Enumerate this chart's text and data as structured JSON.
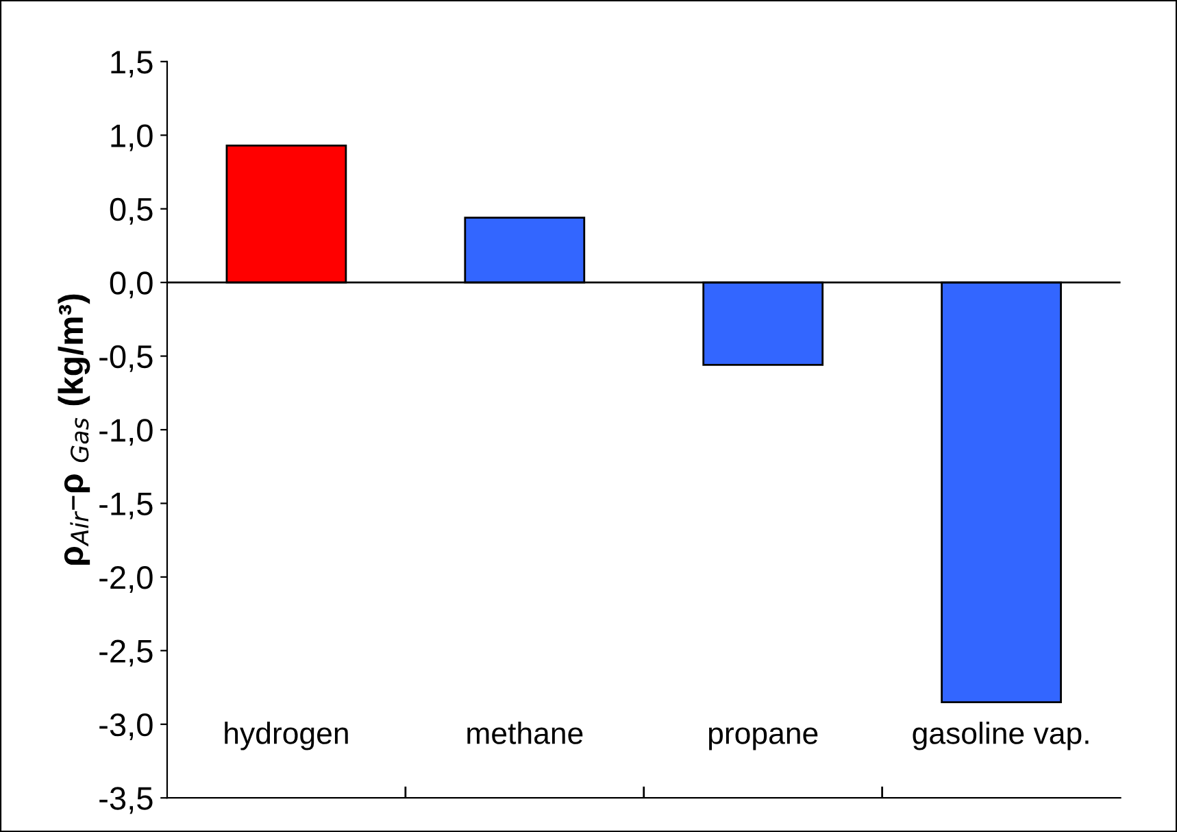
{
  "chart_data": {
    "type": "bar",
    "ylabel": "ρ$_{Air}$–ρ $_{Gas}$ (kg/m³)",
    "categories": [
      "hydrogen",
      "methane",
      "propane",
      "gasoline vap."
    ],
    "values": [
      0.93,
      0.44,
      -0.56,
      -2.85
    ],
    "colors": [
      "#ff0000",
      "#3366ff",
      "#3366ff",
      "#3366ff"
    ],
    "ylim": [
      -3.5,
      1.5
    ],
    "yticks": [
      {
        "value": 1.5,
        "label": "1,5"
      },
      {
        "value": 1.0,
        "label": "1,0"
      },
      {
        "value": 0.5,
        "label": "0,5"
      },
      {
        "value": 0.0,
        "label": "0,0"
      },
      {
        "value": -0.5,
        "label": "-0,5"
      },
      {
        "value": -1.0,
        "label": "-1,0"
      },
      {
        "value": -1.5,
        "label": "-1,5"
      },
      {
        "value": -2.0,
        "label": "-2,0"
      },
      {
        "value": -2.5,
        "label": "-2,5"
      },
      {
        "value": -3.0,
        "label": "-3,0"
      },
      {
        "value": -3.5,
        "label": "-3,5"
      }
    ],
    "ref_lines": [
      {
        "axis": "y",
        "value": 0,
        "color": "#000000"
      }
    ],
    "grid": false,
    "legend": false
  }
}
